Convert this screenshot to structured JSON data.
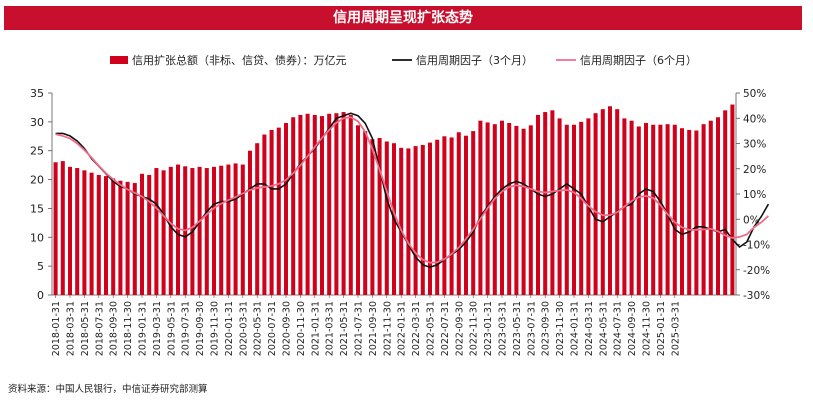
{
  "chart_data": {
    "type": "bar",
    "title": "信用周期呈现扩张态势",
    "source": "资料来源：中国人民银行，中信证券研究部测算",
    "legend": [
      {
        "name": "信用扩张总额（非标、信贷、债券）：万亿元",
        "kind": "bar",
        "color": "#d0021b"
      },
      {
        "name": "信用周期因子（3个月）",
        "kind": "line",
        "color": "#111111"
      },
      {
        "name": "信用周期因子（6个月）",
        "kind": "line",
        "color": "#f06c88"
      }
    ],
    "x_tick_labels": [
      "2018-01-31",
      "2018-03-31",
      "2018-05-31",
      "2018-07-31",
      "2018-09-30",
      "2018-11-30",
      "2019-01-31",
      "2019-03-31",
      "2019-05-31",
      "2019-07-31",
      "2019-09-30",
      "2019-11-30",
      "2020-01-31",
      "2020-03-31",
      "2020-05-31",
      "2020-07-31",
      "2020-09-30",
      "2020-11-30",
      "2021-01-31",
      "2021-03-31",
      "2021-05-31",
      "2021-07-31",
      "2021-09-30",
      "2021-11-30",
      "2022-01-31",
      "2022-03-31",
      "2022-05-31",
      "2022-07-31",
      "2022-09-30",
      "2022-11-30",
      "2023-01-31",
      "2023-03-31",
      "2023-05-31",
      "2023-07-31",
      "2023-09-30",
      "2023-11-30",
      "2024-01-31",
      "2024-03-31",
      "2024-05-31",
      "2024-07-31",
      "2024-09-30",
      "2024-11-30",
      "2025-01-31",
      "2025-03-31"
    ],
    "left_axis": {
      "min": 0,
      "max": 35,
      "step": 5,
      "labels": [
        "0",
        "5",
        "10",
        "15",
        "20",
        "25",
        "30",
        "35"
      ]
    },
    "right_axis": {
      "min": -30,
      "max": 50,
      "step": 10,
      "labels": [
        "-30%",
        "-20%",
        "-10%",
        "0%",
        "10%",
        "20%",
        "30%",
        "40%",
        "50%"
      ]
    },
    "bars": [
      23,
      23.2,
      22.2,
      22,
      21.6,
      21.2,
      20.8,
      20.6,
      20.2,
      19.8,
      19.6,
      19.4,
      21,
      20.8,
      22,
      21.6,
      22.2,
      22.6,
      22.3,
      22,
      22.2,
      22,
      22.2,
      22.4,
      22.6,
      22.8,
      22.6,
      25,
      26.3,
      27.8,
      28.6,
      29,
      29.8,
      30.8,
      31.2,
      31.4,
      31.2,
      31,
      31.4,
      31.5,
      31.7,
      31.2,
      29.4,
      28.4,
      27,
      27.2,
      26.6,
      26.3,
      25.5,
      25.4,
      25.8,
      26,
      26.4,
      26.9,
      27.5,
      27.3,
      28.2,
      27.6,
      28.4,
      30.2,
      29.9,
      29.6,
      30.2,
      29.8,
      29.3,
      28.8,
      29.4,
      31.2,
      31.7,
      32,
      30.6,
      29.5,
      29.5,
      30,
      30.6,
      31.5,
      32.2,
      32.7,
      32.2,
      30.6,
      30.2,
      29.2,
      29.8,
      29.5,
      29.5,
      29.6,
      29.5,
      28.9,
      28.6,
      28.5,
      29.6,
      30.2,
      30.8,
      32,
      33
    ],
    "factor_3m": [
      34,
      34,
      33,
      31,
      28,
      24,
      21,
      18,
      15,
      13,
      12,
      10,
      9,
      8,
      6,
      2,
      -3,
      -6,
      -7,
      -5,
      -1,
      3,
      6,
      7,
      7,
      8,
      10,
      12,
      14,
      14,
      12,
      12,
      14,
      18,
      22,
      25,
      28,
      32,
      36,
      40,
      41,
      42,
      41,
      38,
      32,
      20,
      8,
      0,
      -5,
      -10,
      -15,
      -18,
      -19,
      -18,
      -16,
      -14,
      -12,
      -9,
      -5,
      1,
      5,
      9,
      12,
      14,
      15,
      14,
      12,
      10,
      9,
      10,
      12,
      14,
      12,
      10,
      5,
      0,
      -1,
      1,
      3,
      5,
      6,
      10,
      12,
      11,
      7,
      2,
      -4,
      -6,
      -5,
      -3,
      -3,
      -4,
      -5,
      -4,
      -8,
      -11,
      -9,
      -3,
      1,
      6
    ]
  }
}
